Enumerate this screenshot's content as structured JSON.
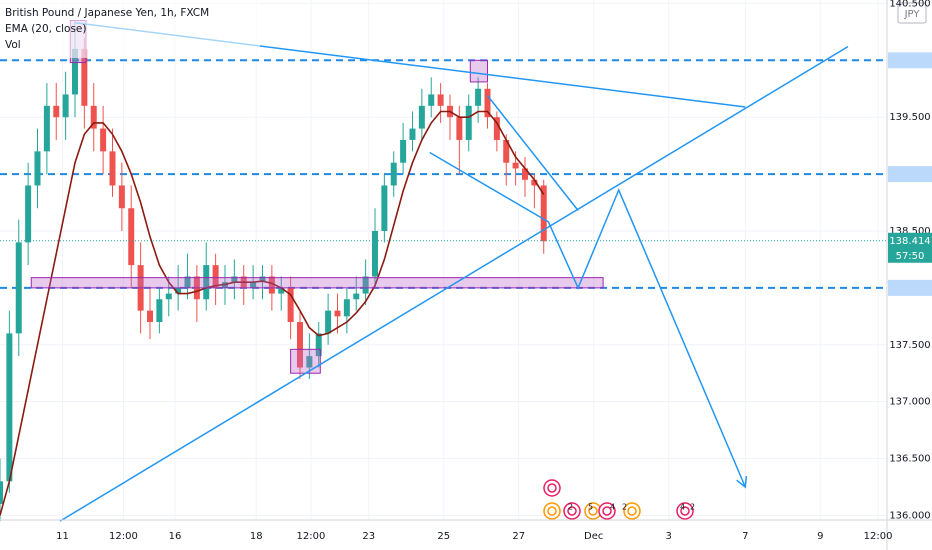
{
  "chart_data": {
    "type": "candlestick",
    "title": "British Pound / Japanese Yen, 1h, FXCM",
    "volume_label": "Vol",
    "currency": "JPY",
    "x": [
      0,
      6,
      12,
      18,
      24,
      30,
      36,
      42,
      48,
      54,
      60,
      66,
      72,
      78,
      84,
      90,
      96,
      102,
      108,
      114,
      120,
      126,
      132,
      138,
      144,
      150,
      156,
      162,
      168,
      174,
      180,
      186,
      192,
      198,
      204,
      210,
      216,
      222,
      228,
      234,
      240,
      246,
      252,
      258,
      264,
      270,
      276,
      282,
      288,
      294,
      300,
      306,
      312,
      318,
      324,
      330,
      336,
      342,
      348
    ],
    "open": [
      136.1,
      136.3,
      137.6,
      138.4,
      138.9,
      139.2,
      139.6,
      139.5,
      139.7,
      140.1,
      139.6,
      139.4,
      139.2,
      138.9,
      138.7,
      138.2,
      137.8,
      137.7,
      137.9,
      137.95,
      138.0,
      138.1,
      137.9,
      138.2,
      138.0,
      138.05,
      138.1,
      138.0,
      138.05,
      138.1,
      137.95,
      138.0,
      137.7,
      137.3,
      137.4,
      137.6,
      137.8,
      137.75,
      137.9,
      137.95,
      138.1,
      138.5,
      138.9,
      139.1,
      139.3,
      139.4,
      139.6,
      139.7,
      139.6,
      139.5,
      139.3,
      139.6,
      139.75,
      139.5,
      139.3,
      139.1,
      139.05,
      138.95,
      138.9
    ],
    "high": [
      136.5,
      137.8,
      138.6,
      139.1,
      139.4,
      139.8,
      139.8,
      139.9,
      140.35,
      140.2,
      139.8,
      139.6,
      139.4,
      139.1,
      138.9,
      138.4,
      138.0,
      138.0,
      138.1,
      138.2,
      138.3,
      138.2,
      138.4,
      138.3,
      138.2,
      138.25,
      138.2,
      138.2,
      138.2,
      138.2,
      138.1,
      138.1,
      137.8,
      137.6,
      137.7,
      137.95,
      137.95,
      138.0,
      138.1,
      138.25,
      138.7,
      139.0,
      139.2,
      139.45,
      139.55,
      139.75,
      139.85,
      139.8,
      139.7,
      139.6,
      139.7,
      139.85,
      139.8,
      139.55,
      139.35,
      139.2,
      139.15,
      139.0,
      138.95
    ],
    "low": [
      135.95,
      136.2,
      137.4,
      138.2,
      138.7,
      139.0,
      139.3,
      139.3,
      139.5,
      139.4,
      139.2,
      139.0,
      138.8,
      138.5,
      138.0,
      137.6,
      137.55,
      137.6,
      137.75,
      137.8,
      137.9,
      137.7,
      137.8,
      137.85,
      137.85,
      137.9,
      137.85,
      137.9,
      137.9,
      137.8,
      137.8,
      137.55,
      137.2,
      137.2,
      137.3,
      137.5,
      137.6,
      137.6,
      137.8,
      137.85,
      138.0,
      138.4,
      138.8,
      139.0,
      139.2,
      139.3,
      139.5,
      139.45,
      139.3,
      139.0,
      139.2,
      139.45,
      139.4,
      139.2,
      138.9,
      138.9,
      138.8,
      138.7,
      138.3
    ],
    "close": [
      136.3,
      137.6,
      138.4,
      138.9,
      139.2,
      139.6,
      139.5,
      139.7,
      140.1,
      139.6,
      139.4,
      139.2,
      138.9,
      138.7,
      138.2,
      137.8,
      137.7,
      137.9,
      137.95,
      138.0,
      138.1,
      137.9,
      138.2,
      138.0,
      138.05,
      138.1,
      138.0,
      138.05,
      138.1,
      137.95,
      138.0,
      137.7,
      137.3,
      137.4,
      137.6,
      137.8,
      137.75,
      137.9,
      137.95,
      138.1,
      138.5,
      138.9,
      139.1,
      139.3,
      139.4,
      139.6,
      139.7,
      139.6,
      139.5,
      139.3,
      139.6,
      139.75,
      139.5,
      139.3,
      139.1,
      139.05,
      138.95,
      138.9,
      138.41
    ],
    "up_color": "#26a69a",
    "down_color": "#ef5350",
    "series": [
      {
        "name": "EMA (20, close)",
        "color": "#8b1a10",
        "values": [
          136.0,
          136.3,
          136.7,
          137.1,
          137.5,
          137.9,
          138.3,
          138.7,
          139.1,
          139.35,
          139.45,
          139.45,
          139.35,
          139.2,
          139.0,
          138.75,
          138.45,
          138.2,
          138.05,
          137.95,
          137.95,
          137.97,
          138.0,
          138.02,
          138.03,
          138.05,
          138.05,
          138.05,
          138.06,
          138.04,
          138.0,
          137.94,
          137.8,
          137.65,
          137.58,
          137.6,
          137.65,
          137.7,
          137.78,
          137.88,
          138.02,
          138.25,
          138.55,
          138.85,
          139.1,
          139.3,
          139.45,
          139.55,
          139.55,
          139.5,
          139.5,
          139.55,
          139.55,
          139.45,
          139.3,
          139.15,
          139.05,
          138.95,
          138.82
        ]
      }
    ],
    "xlim": [
      0,
      567.7
    ],
    "ylim": [
      135.96,
      140.53
    ],
    "yticks": [
      {
        "value": 140.5,
        "label": "140.500"
      },
      {
        "value": 140.0,
        "label": "140.000"
      },
      {
        "value": 139.5,
        "label": "139.500"
      },
      {
        "value": 139.0,
        "label": "139.000"
      },
      {
        "value": 138.5,
        "label": "138.500"
      },
      {
        "value": 138.0,
        "label": "138.000"
      },
      {
        "value": 137.5,
        "label": "137.500"
      },
      {
        "value": 137.0,
        "label": "137.000"
      },
      {
        "value": 136.5,
        "label": "136.500"
      },
      {
        "value": 136.0,
        "label": "136.000"
      }
    ],
    "xticks": [
      {
        "value": 40,
        "label": "11"
      },
      {
        "value": 79,
        "label": "12:00"
      },
      {
        "value": 112,
        "label": "16"
      },
      {
        "value": 164,
        "label": "18"
      },
      {
        "value": 199,
        "label": "12:00"
      },
      {
        "value": 236,
        "label": "23"
      },
      {
        "value": 284,
        "label": "25"
      },
      {
        "value": 332,
        "label": "27"
      },
      {
        "value": 380,
        "label": "Dec"
      },
      {
        "value": 428,
        "label": "3"
      },
      {
        "value": 477,
        "label": "7"
      },
      {
        "value": 525,
        "label": "9"
      },
      {
        "value": 562,
        "label": "12:00"
      }
    ],
    "grid": true,
    "levels": [
      140.0,
      139.0,
      138.0
    ],
    "level_color": "#1e88e5",
    "drawing_color": "#2196f3",
    "drawings": [
      {
        "x": [
          48,
          477
        ],
        "y": [
          140.33,
          139.59
        ]
      },
      {
        "x": [
          38.4,
          542.7
        ],
        "y": [
          135.95,
          140.12
        ]
      },
      {
        "x": [
          312,
          370
        ],
        "y": [
          139.69,
          138.68
        ]
      },
      {
        "x": [
          275,
          351,
          370,
          396,
          477
        ],
        "y": [
          139.19,
          138.58,
          138.0,
          138.86,
          136.25
        ]
      }
    ],
    "boxes": [
      {
        "x": [
          45,
          55
        ],
        "y": [
          139.98,
          140.35
        ]
      },
      {
        "x": [
          301,
          312
        ],
        "y": [
          139.81,
          140.0
        ]
      },
      {
        "x": [
          20,
          386
        ],
        "y": [
          138.0,
          138.09
        ]
      },
      {
        "x": [
          186,
          205
        ],
        "y": [
          137.25,
          137.46
        ]
      }
    ],
    "box_color": "#9c27b0",
    "last_price": {
      "value": 138.414,
      "label": "138.414"
    },
    "countdown": "57:50",
    "events": [
      "2",
      "5",
      "4",
      "2",
      "4",
      "2"
    ]
  }
}
